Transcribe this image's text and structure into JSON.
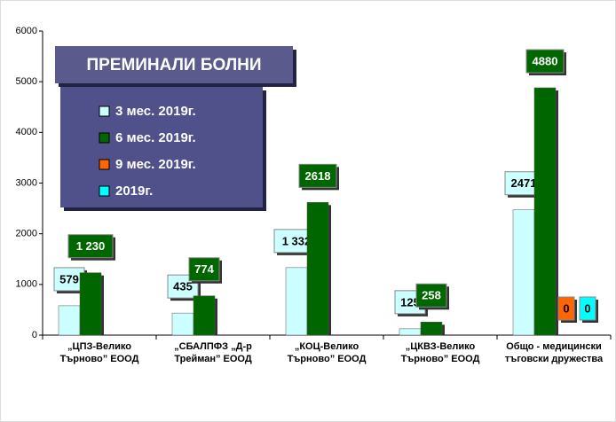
{
  "chart_data": {
    "type": "bar",
    "title": "ПРЕМИНАЛИ БОЛНИ",
    "categories": [
      "„ЦПЗ-Велико Търново” ЕООД",
      "„СБАЛПФЗ „Д-р Трейман” ЕООД",
      "„КОЦ-Велико Търново” ЕООД",
      "„ЦКВЗ-Велико Търново” ЕООД",
      "Общо - медицински тъговски дружества"
    ],
    "series": [
      {
        "name": "3 мес. 2019г.",
        "color": "#ccffff",
        "values": [
          579,
          435,
          1332,
          125,
          2471
        ],
        "value_labels": [
          "579",
          "435",
          "1 332",
          "125",
          "2471"
        ]
      },
      {
        "name": "6 мес. 2019г.",
        "color": "#006600",
        "values": [
          1230,
          774,
          2618,
          258,
          4880
        ],
        "value_labels": [
          "1 230",
          "774",
          "2618",
          "258",
          "4880"
        ]
      },
      {
        "name": "9 мес. 2019г.",
        "color": "#ff6600",
        "values": [
          null,
          null,
          null,
          null,
          0
        ],
        "value_labels": [
          null,
          null,
          null,
          null,
          "0"
        ]
      },
      {
        "name": "2019г.",
        "color": "#00ffff",
        "values": [
          null,
          null,
          null,
          null,
          0
        ],
        "value_labels": [
          null,
          null,
          null,
          null,
          "0"
        ]
      }
    ],
    "ylim": [
      0,
      6000
    ],
    "yticks": [
      0,
      1000,
      2000,
      3000,
      4000,
      5000,
      6000
    ],
    "grid": false
  }
}
